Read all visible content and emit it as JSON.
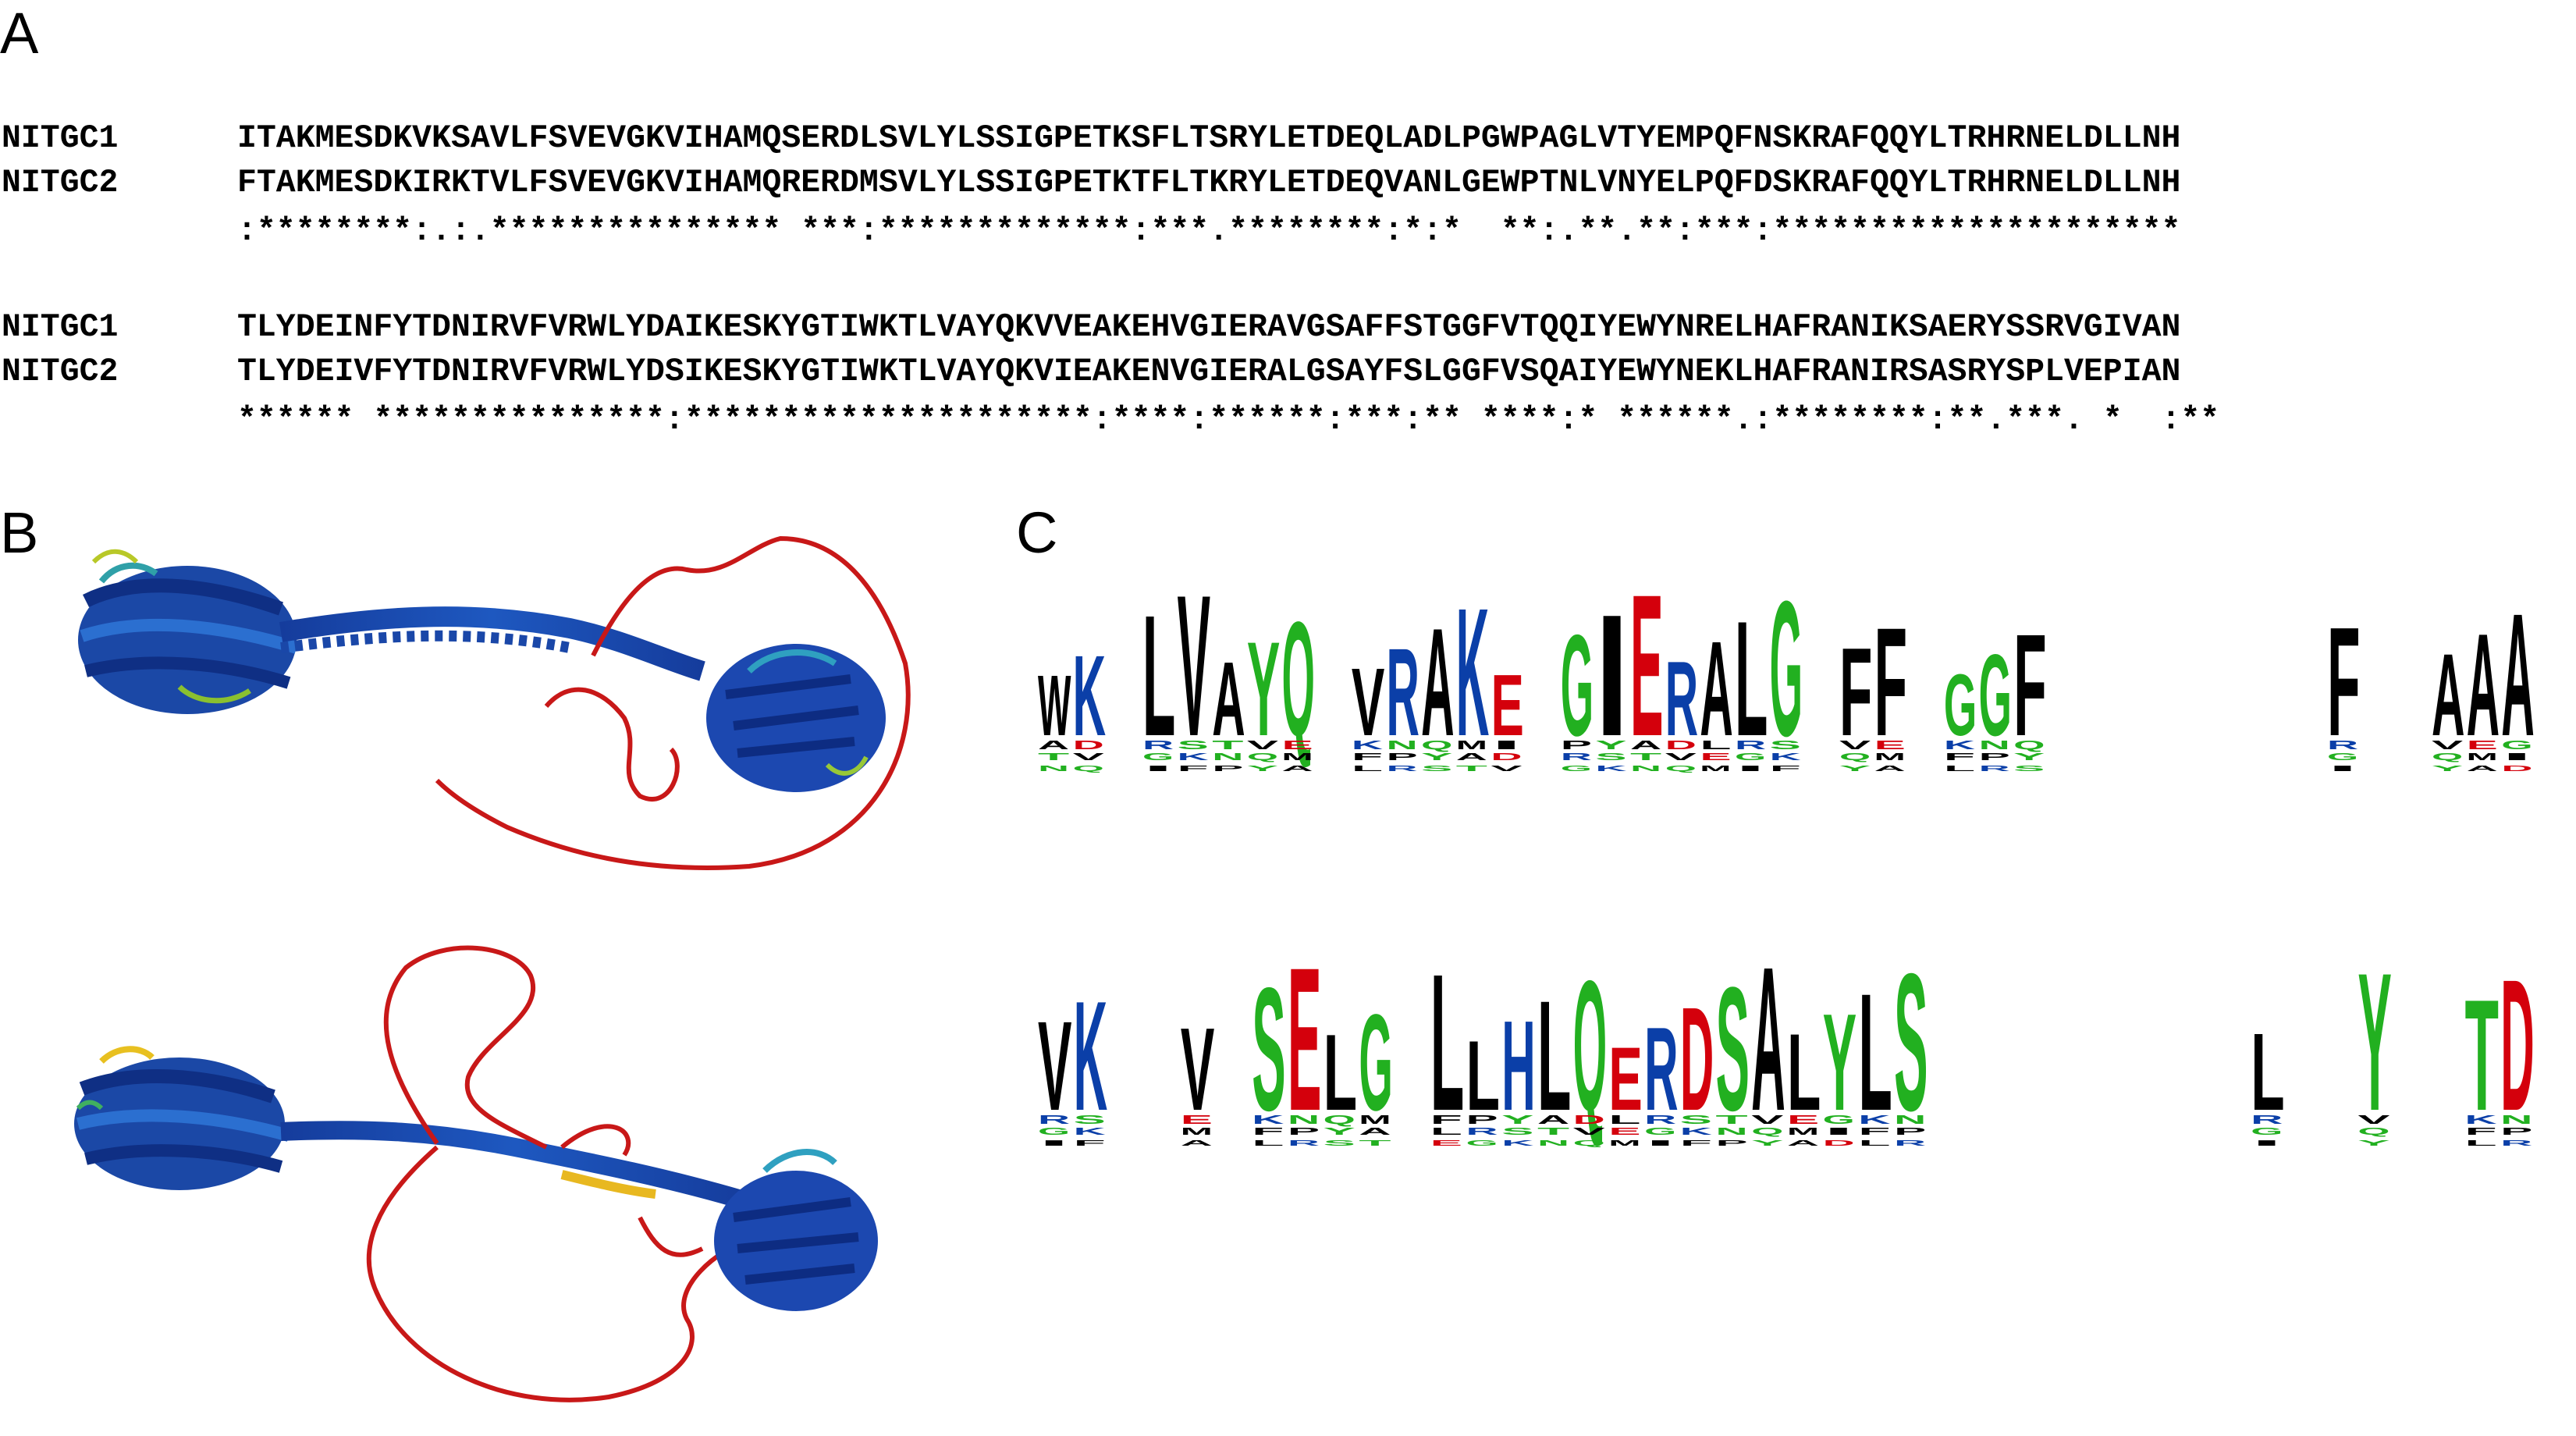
{
  "panels": {
    "a": "A",
    "b": "B",
    "c": "C"
  },
  "alignment": {
    "blocks": [
      {
        "rows": [
          {
            "name": "NITGC1",
            "seq": "ITAKMESDKVKSAVLFSVEVGKVIHAMQSERDLSVLYLSSIGPETKSFLTSRYLETDEQLADLPGWPAGLVTYEMPQFNSKRAFQQYLTRHRNELDLLNH"
          },
          {
            "name": "NITGC2",
            "seq": "FTAKMESDKIRKTVLFSVEVGKVIHAMQRERDMSVLYLSSIGPETKTFLTKRYLETDEQVANLGEWPTNLVNYELPQFDSKRAFQQYLTRHRNELDLLNH"
          }
        ],
        "consensus": ":********:.:.*************** ***:*************:***.********:*:*  **:.**.**:***:*********************"
      },
      {
        "rows": [
          {
            "name": "NITGC1",
            "seq": "TLYDEINFYTDNIRVFVRWLYDAIKESKYGTIWKTLVAYQKVVEAKEHVGIERAVGSAFFSTGGFVTQQIYEWYNRELHAFRANIKSAERYSSRVGIVAN"
          },
          {
            "name": "NITGC2",
            "seq": "TLYDEIVFYTDNIRVFVRWLYDSIKESKYGTIWKTLVAYQKVIEAKENVGIERALGSAYFSLGGFVSQAIYEWYNEKLHAFRANIRSASRYSPLVEPIAN"
          }
        ],
        "consensus": "****** ***************:*********************:****:******:***:** ****:* ******.:********:**.***. *  :**"
      }
    ]
  },
  "logo": {
    "rows": [
      {
        "letters": [
          "W",
          "K",
          "",
          "L",
          "V",
          "A",
          "Y",
          "Q",
          "",
          "V",
          "R",
          "A",
          "K",
          "E",
          "",
          "G",
          "I",
          "E",
          "R",
          "A",
          "L",
          "G",
          "",
          "F",
          "F",
          "",
          "G",
          "G",
          "F",
          "",
          "",
          "",
          "",
          "",
          "",
          "",
          "",
          "F",
          "",
          "",
          "A",
          "A",
          "A"
        ]
      },
      {
        "letters": [
          "V",
          "K",
          "",
          "",
          "V",
          "",
          "S",
          "E",
          "L",
          "G",
          "",
          "L",
          "L",
          "H",
          "L",
          "Q",
          "E",
          "R",
          "D",
          "S",
          "A",
          "L",
          "Y",
          "L",
          "S",
          "",
          "",
          "",
          "",
          "",
          "",
          "",
          "",
          "",
          "L",
          "",
          "",
          "Y",
          "",
          "",
          "T",
          "D"
        ]
      }
    ]
  },
  "colors": {
    "red": "#d4000c",
    "blue": "#0b3fa8",
    "green": "#22b020",
    "black": "#000000",
    "purple": "#9c2a9c"
  },
  "structures": [
    {
      "name": "protein-model-top",
      "coil": "#cc1414",
      "helix": "#1c4aa8"
    },
    {
      "name": "protein-model-bottom",
      "coil": "#cc1414",
      "helix": "#1c4aa8"
    }
  ]
}
